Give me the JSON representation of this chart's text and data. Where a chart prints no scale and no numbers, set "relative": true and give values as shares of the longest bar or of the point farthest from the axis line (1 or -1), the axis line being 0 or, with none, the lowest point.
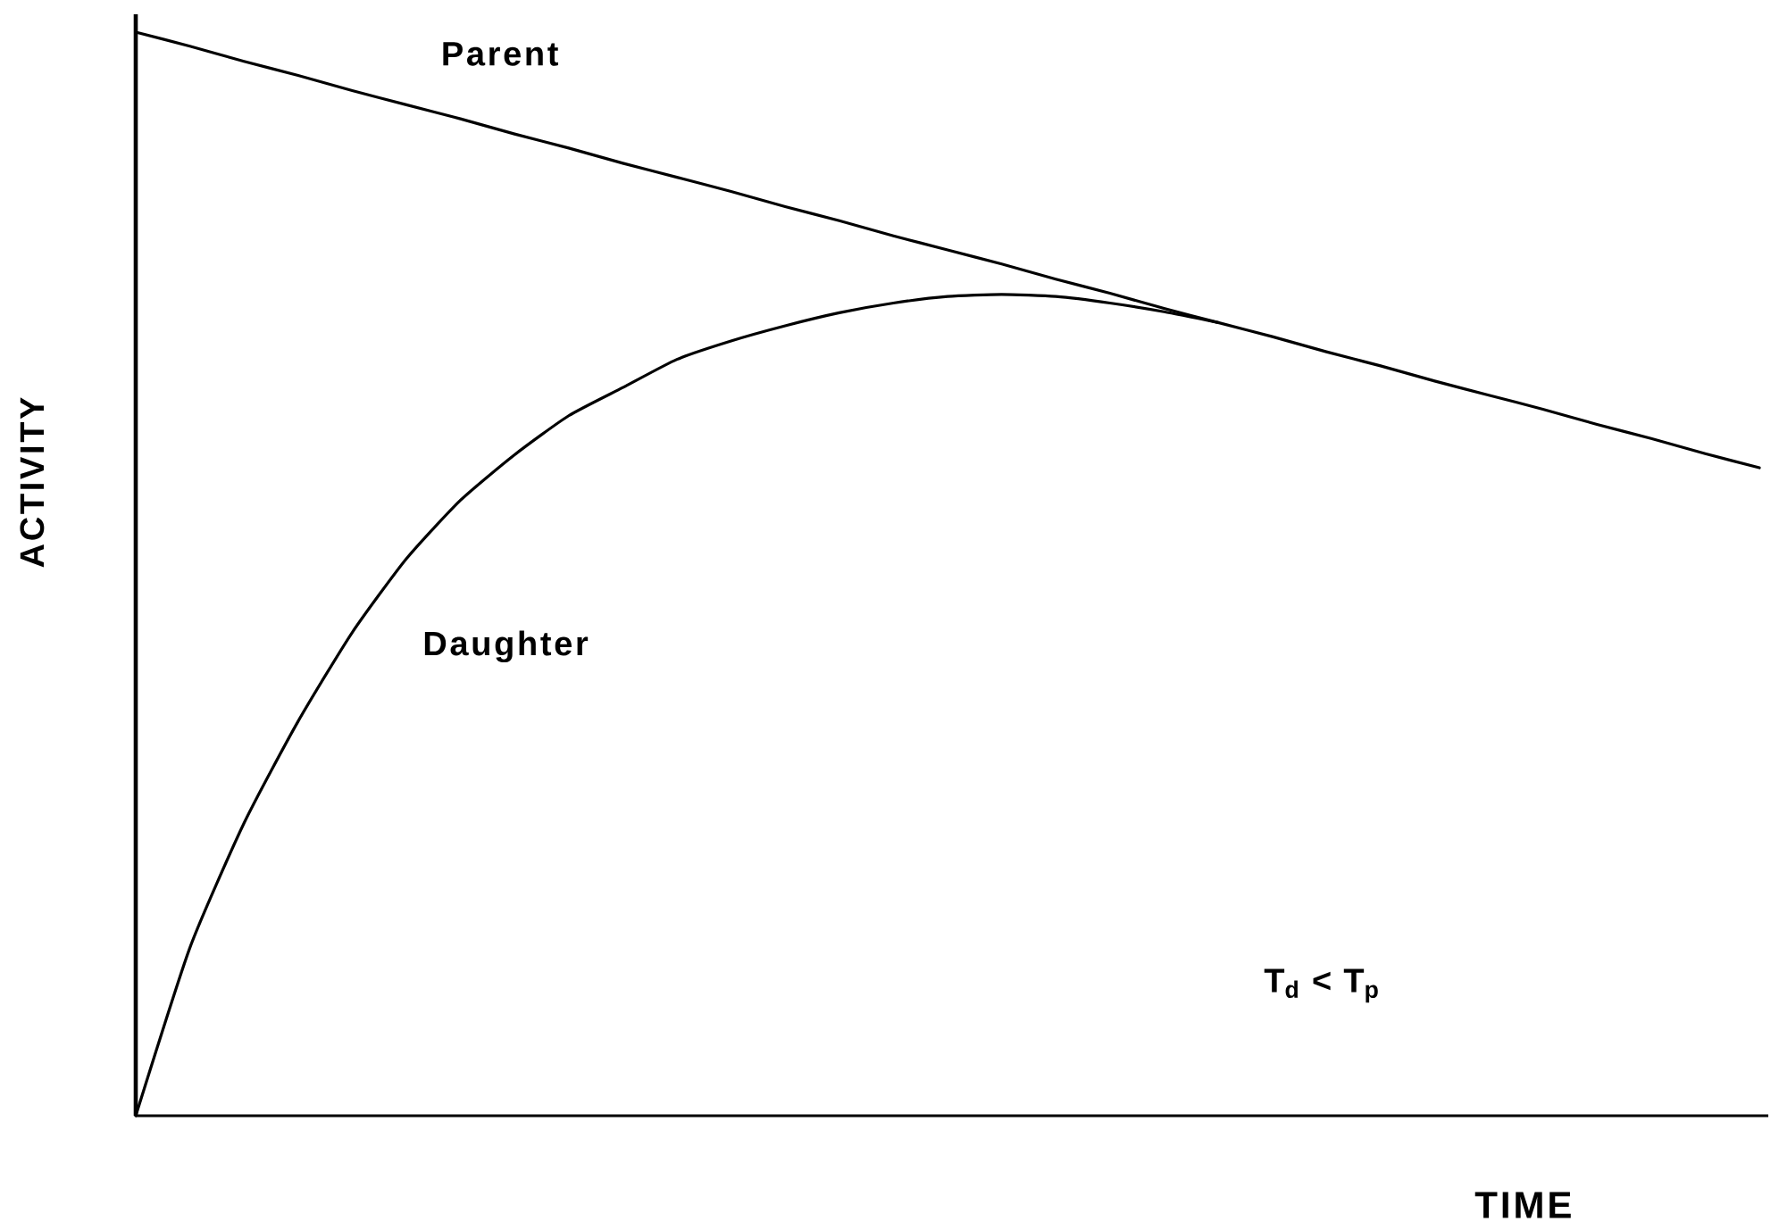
{
  "chart_data": {
    "type": "line",
    "xlabel": "TIME",
    "ylabel": "ACTIVITY",
    "relative": true,
    "categories": [
      null,
      null,
      null,
      null,
      null,
      null,
      null,
      null,
      null,
      null,
      null,
      null,
      null,
      null,
      null,
      null,
      null,
      null,
      null,
      null,
      null,
      null,
      null,
      null,
      null,
      null,
      null,
      null,
      null,
      null,
      null
    ],
    "series": [
      {
        "name": "Parent",
        "color": "#000000",
        "values": [
          1,
          0.987,
          0.973,
          0.96,
          0.946,
          0.933,
          0.92,
          0.906,
          0.893,
          0.879,
          0.866,
          0.853,
          0.839,
          0.826,
          0.812,
          0.799,
          0.786,
          0.772,
          0.759,
          0.745,
          0.732,
          0.719,
          0.705,
          0.692,
          0.678,
          0.665,
          0.652,
          0.638,
          0.625,
          0.611,
          0.598
        ]
      },
      {
        "name": "Daughter",
        "color": "#000000",
        "values": [
          0,
          0.155,
          0.27,
          0.364,
          0.446,
          0.514,
          0.568,
          0.61,
          0.646,
          0.672,
          0.698,
          0.715,
          0.729,
          0.741,
          0.75,
          0.756,
          0.758,
          0.756,
          0.75,
          0.742,
          0.732,
          null,
          null,
          null,
          null,
          null,
          null,
          null,
          null,
          null,
          null
        ]
      }
    ],
    "annotations": [
      "T$_{d}$ < T$_{p}$"
    ]
  }
}
